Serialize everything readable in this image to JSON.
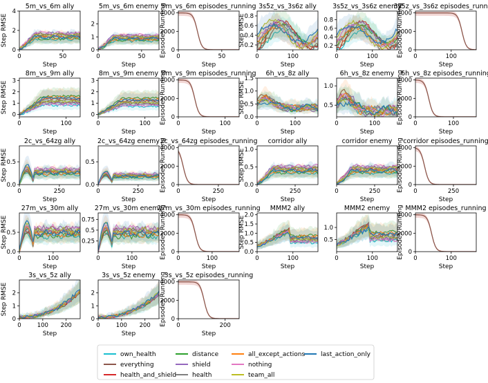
{
  "chart_data": {
    "type": "line",
    "legend": {
      "placement": "bottom-center",
      "entries": [
        {
          "name": "own_health",
          "color": "#17becf"
        },
        {
          "name": "everything",
          "color": "#8c564b"
        },
        {
          "name": "health_and_shield",
          "color": "#d62728"
        },
        {
          "name": "distance",
          "color": "#2ca02c"
        },
        {
          "name": "shield",
          "color": "#9467bd"
        },
        {
          "name": "health",
          "color": "#7f7f7f"
        },
        {
          "name": "all_except_actions",
          "color": "#ff7f0e"
        },
        {
          "name": "nothing",
          "color": "#e377c2"
        },
        {
          "name": "team_all",
          "color": "#bcbd22"
        },
        {
          "name": "last_action_only",
          "color": "#1f77b4"
        }
      ]
    },
    "panels": [
      {
        "title": "5m_vs_6m ally",
        "kind": "rmse",
        "xlabel": "Step",
        "ylabel": "Step RMSE",
        "xlim": [
          0,
          70
        ],
        "ylim": [
          0,
          4
        ],
        "xticks": [
          0,
          50
        ],
        "yticks": [
          0,
          2,
          4
        ],
        "shape": "plateau",
        "peak": 2
      },
      {
        "title": "5m_vs_6m enemy",
        "kind": "rmse",
        "xlabel": "Step",
        "ylabel": "",
        "xlim": [
          0,
          70
        ],
        "ylim": [
          0,
          3
        ],
        "xticks": [
          0,
          50
        ],
        "yticks": [
          0,
          1,
          2
        ],
        "shape": "plateau",
        "peak": 1.3
      },
      {
        "title": "5m_vs_6m episodes_running",
        "kind": "episodes",
        "xlabel": "Step",
        "ylabel": "Episodes Running",
        "xlim": [
          0,
          70
        ],
        "ylim": [
          0,
          4200
        ],
        "xticks": [
          0,
          50
        ],
        "yticks": [
          0,
          2000,
          4000
        ],
        "drop_at": 22
      },
      {
        "title": "3s5z_vs_3s6z ally",
        "kind": "rmse",
        "xlabel": "Step",
        "ylabel": "Step RMSE",
        "xlim": [
          0,
          170
        ],
        "ylim": [
          0.1,
          0.9
        ],
        "xticks": [
          0,
          100
        ],
        "yticks": [
          0.2,
          0.4,
          0.6,
          0.8
        ],
        "shape": "wave",
        "peak": 0.75
      },
      {
        "title": "3s5z_vs_3s6z enemy",
        "kind": "rmse",
        "xlabel": "Step",
        "ylabel": "",
        "xlim": [
          0,
          170
        ],
        "ylim": [
          0.1,
          1.0
        ],
        "xticks": [
          0,
          100
        ],
        "yticks": [
          0.2,
          0.4,
          0.6,
          0.8
        ],
        "shape": "wave",
        "peak": 0.8
      },
      {
        "title": "3s5z_vs_3s6z episodes_running",
        "kind": "episodes",
        "xlabel": "Step",
        "ylabel": "Episodes Running",
        "xlim": [
          0,
          170
        ],
        "ylim": [
          0,
          4200
        ],
        "xticks": [
          0,
          100
        ],
        "yticks": [
          0,
          2000,
          4000
        ],
        "drop_at": 130
      },
      {
        "title": "8m_vs_9m ally",
        "kind": "rmse",
        "xlabel": "Step",
        "ylabel": "Step RMSE",
        "xlim": [
          0,
          130
        ],
        "ylim": [
          -0.2,
          3.2
        ],
        "xticks": [
          0,
          100
        ],
        "yticks": [
          0,
          1,
          2,
          3
        ],
        "shape": "rise",
        "peak": 1.8
      },
      {
        "title": "8m_vs_9m enemy",
        "kind": "rmse",
        "xlabel": "Step",
        "ylabel": "",
        "xlim": [
          0,
          130
        ],
        "ylim": [
          -0.2,
          3.2
        ],
        "xticks": [
          0,
          100
        ],
        "yticks": [
          0,
          1,
          2,
          3
        ],
        "shape": "rise",
        "peak": 1.6
      },
      {
        "title": "8m_vs_9m episodes_running",
        "kind": "episodes",
        "xlabel": "Step",
        "ylabel": "Episodes Running",
        "xlim": [
          0,
          130
        ],
        "ylim": [
          0,
          4200
        ],
        "xticks": [
          0,
          100
        ],
        "yticks": [
          0,
          2000,
          4000
        ],
        "drop_at": 35
      },
      {
        "title": "6h_vs_8z ally",
        "kind": "rmse",
        "xlabel": "Step",
        "ylabel": "Step RMSE",
        "xlim": [
          0,
          160
        ],
        "ylim": [
          0,
          1.5
        ],
        "xticks": [
          0,
          100
        ],
        "yticks": [
          0.0,
          0.5,
          1.0,
          1.5
        ],
        "shape": "hump",
        "peak": 1.0
      },
      {
        "title": "6h_vs_8z enemy",
        "kind": "rmse",
        "xlabel": "Step",
        "ylabel": "",
        "xlim": [
          0,
          160
        ],
        "ylim": [
          0.2,
          1.2
        ],
        "xticks": [
          0,
          100
        ],
        "yticks": [
          0.5,
          1.0
        ],
        "shape": "hump",
        "peak": 1.0
      },
      {
        "title": "6h_vs_8z episodes_running",
        "kind": "episodes",
        "xlabel": "Step",
        "ylabel": "Episodes Running",
        "xlim": [
          0,
          160
        ],
        "ylim": [
          0,
          4200
        ],
        "xticks": [
          0,
          100
        ],
        "yticks": [
          0,
          2000,
          4000
        ],
        "drop_at": 35
      },
      {
        "title": "2c_vs_64zg ally",
        "kind": "rmse",
        "xlabel": "Step",
        "ylabel": "Step RMSE",
        "xlim": [
          0,
          380
        ],
        "ylim": [
          0,
          0.85
        ],
        "xticks": [
          0,
          250
        ],
        "yticks": [
          0.0,
          0.5
        ],
        "shape": "spike",
        "peak": 0.5
      },
      {
        "title": "2c_vs_64zg enemy",
        "kind": "rmse",
        "xlabel": "Step",
        "ylabel": "",
        "xlim": [
          0,
          380
        ],
        "ylim": [
          0,
          0.85
        ],
        "xticks": [
          0,
          250
        ],
        "yticks": [
          0.0,
          0.5
        ],
        "shape": "spike",
        "peak": 0.35
      },
      {
        "title": "2c_vs_64zg episodes_running",
        "kind": "episodes",
        "xlabel": "Step",
        "ylabel": "Episodes Running",
        "xlim": [
          0,
          380
        ],
        "ylim": [
          0,
          4200
        ],
        "xticks": [
          0,
          250
        ],
        "yticks": [
          0,
          2000,
          4000
        ],
        "drop_at": 30
      },
      {
        "title": "corridor ally",
        "kind": "rmse",
        "xlabel": "Step",
        "ylabel": "Step RMSE",
        "xlim": [
          0,
          400
        ],
        "ylim": [
          0,
          1.1
        ],
        "xticks": [
          0,
          250
        ],
        "yticks": [
          0.0,
          0.5,
          1.0
        ],
        "shape": "plateau",
        "peak": 0.6
      },
      {
        "title": "corridor enemy",
        "kind": "rmse",
        "xlabel": "Step",
        "ylabel": "",
        "xlim": [
          0,
          400
        ],
        "ylim": [
          0,
          1.1
        ],
        "xticks": [
          0,
          250
        ],
        "yticks": [],
        "shape": "plateau",
        "peak": 0.6
      },
      {
        "title": "corridor episodes_running",
        "kind": "episodes",
        "xlabel": "Step",
        "ylabel": "Episodes Running",
        "xlim": [
          0,
          400
        ],
        "ylim": [
          0,
          4200
        ],
        "xticks": [
          0,
          250
        ],
        "yticks": [
          0,
          2000,
          4000
        ],
        "drop_at": 60
      },
      {
        "title": "27m_vs_30m ally",
        "kind": "rmse",
        "xlabel": "Step",
        "ylabel": "Step RMSE",
        "xlim": [
          0,
          180
        ],
        "ylim": [
          0,
          1.0
        ],
        "xticks": [
          0,
          100
        ],
        "yticks": [
          0.0,
          0.5
        ],
        "shape": "spike",
        "peak": 0.9
      },
      {
        "title": "27m_vs_30m enemy",
        "kind": "rmse",
        "xlabel": "Step",
        "ylabel": "",
        "xlim": [
          0,
          180
        ],
        "ylim": [
          0,
          0.9
        ],
        "xticks": [
          0,
          100
        ],
        "yticks": [
          0.25,
          0.5,
          0.75
        ],
        "shape": "spike",
        "peak": 0.8
      },
      {
        "title": "27m_vs_30m episodes_running",
        "kind": "episodes",
        "xlabel": "Step",
        "ylabel": "Episodes Running",
        "xlim": [
          0,
          180
        ],
        "ylim": [
          0,
          4200
        ],
        "xticks": [
          0,
          100
        ],
        "yticks": [
          0,
          2000,
          4000
        ],
        "drop_at": 50
      },
      {
        "title": "MMM2 ally",
        "kind": "rmse",
        "xlabel": "Step",
        "ylabel": "Step RMSE",
        "xlim": [
          0,
          170
        ],
        "ylim": [
          0,
          2.1
        ],
        "xticks": [
          0,
          100
        ],
        "yticks": [
          0.0,
          0.5,
          1.0,
          1.5,
          2.0
        ],
        "shape": "rise_drop",
        "peak": 1.4
      },
      {
        "title": "MMM2 enemy",
        "kind": "rmse",
        "xlabel": "Step",
        "ylabel": "",
        "xlim": [
          0,
          170
        ],
        "ylim": [
          0,
          1.6
        ],
        "xticks": [
          0,
          100
        ],
        "yticks": [
          0.5,
          1.0
        ],
        "shape": "rise_drop",
        "peak": 1.3
      },
      {
        "title": "MMM2 episodes_running",
        "kind": "episodes",
        "xlabel": "Step",
        "ylabel": "Episodes Running",
        "xlim": [
          0,
          170
        ],
        "ylim": [
          0,
          4200
        ],
        "xticks": [
          0,
          100
        ],
        "yticks": [
          0,
          2000,
          4000
        ],
        "drop_at": 45
      },
      {
        "title": "3s_vs_5z ally",
        "kind": "rmse",
        "xlabel": "Step",
        "ylabel": "Step RMSE",
        "xlim": [
          0,
          260
        ],
        "ylim": [
          0,
          3
        ],
        "xticks": [
          0,
          100,
          200
        ],
        "yticks": [
          0,
          1,
          2
        ],
        "shape": "exp",
        "peak": 2.3
      },
      {
        "title": "3s_vs_5z enemy",
        "kind": "rmse",
        "xlabel": "Step",
        "ylabel": "",
        "xlim": [
          0,
          260
        ],
        "ylim": [
          0,
          3
        ],
        "xticks": [
          0,
          100,
          200
        ],
        "yticks": [
          0,
          1,
          2
        ],
        "shape": "exp",
        "peak": 2.1
      },
      {
        "title": "3s_vs_5z episodes_running",
        "kind": "episodes",
        "xlabel": "Step",
        "ylabel": "Episodes Running",
        "xlim": [
          0,
          260
        ],
        "ylim": [
          0,
          4200
        ],
        "xticks": [
          0,
          200
        ],
        "yticks": [
          0,
          2000,
          4000
        ],
        "drop_at": 110
      }
    ]
  }
}
